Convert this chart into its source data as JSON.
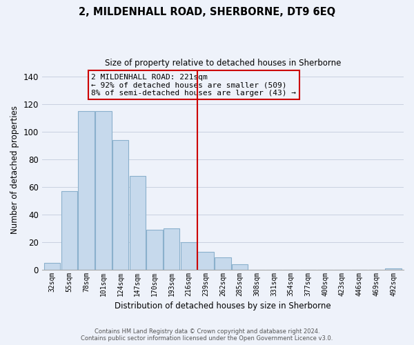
{
  "title": "2, MILDENHALL ROAD, SHERBORNE, DT9 6EQ",
  "subtitle": "Size of property relative to detached houses in Sherborne",
  "xlabel": "Distribution of detached houses by size in Sherborne",
  "ylabel": "Number of detached properties",
  "bar_labels": [
    "32sqm",
    "55sqm",
    "78sqm",
    "101sqm",
    "124sqm",
    "147sqm",
    "170sqm",
    "193sqm",
    "216sqm",
    "239sqm",
    "262sqm",
    "285sqm",
    "308sqm",
    "331sqm",
    "354sqm",
    "377sqm",
    "400sqm",
    "423sqm",
    "446sqm",
    "469sqm",
    "492sqm"
  ],
  "bar_values": [
    5,
    57,
    115,
    115,
    94,
    68,
    29,
    30,
    20,
    13,
    9,
    4,
    0,
    0,
    0,
    0,
    0,
    0,
    0,
    0,
    1
  ],
  "bar_color": "#c6d9ec",
  "bar_edge_color": "#8ab0cc",
  "vline_x": 8.5,
  "vline_color": "#cc0000",
  "ylim": [
    0,
    145
  ],
  "yticks": [
    0,
    20,
    40,
    60,
    80,
    100,
    120,
    140
  ],
  "annotation_title": "2 MILDENHALL ROAD: 221sqm",
  "annotation_line1": "← 92% of detached houses are smaller (509)",
  "annotation_line2": "8% of semi-detached houses are larger (43) →",
  "footer1": "Contains HM Land Registry data © Crown copyright and database right 2024.",
  "footer2": "Contains public sector information licensed under the Open Government Licence v3.0.",
  "background_color": "#eef2fa",
  "grid_color": "#c8d0e0"
}
